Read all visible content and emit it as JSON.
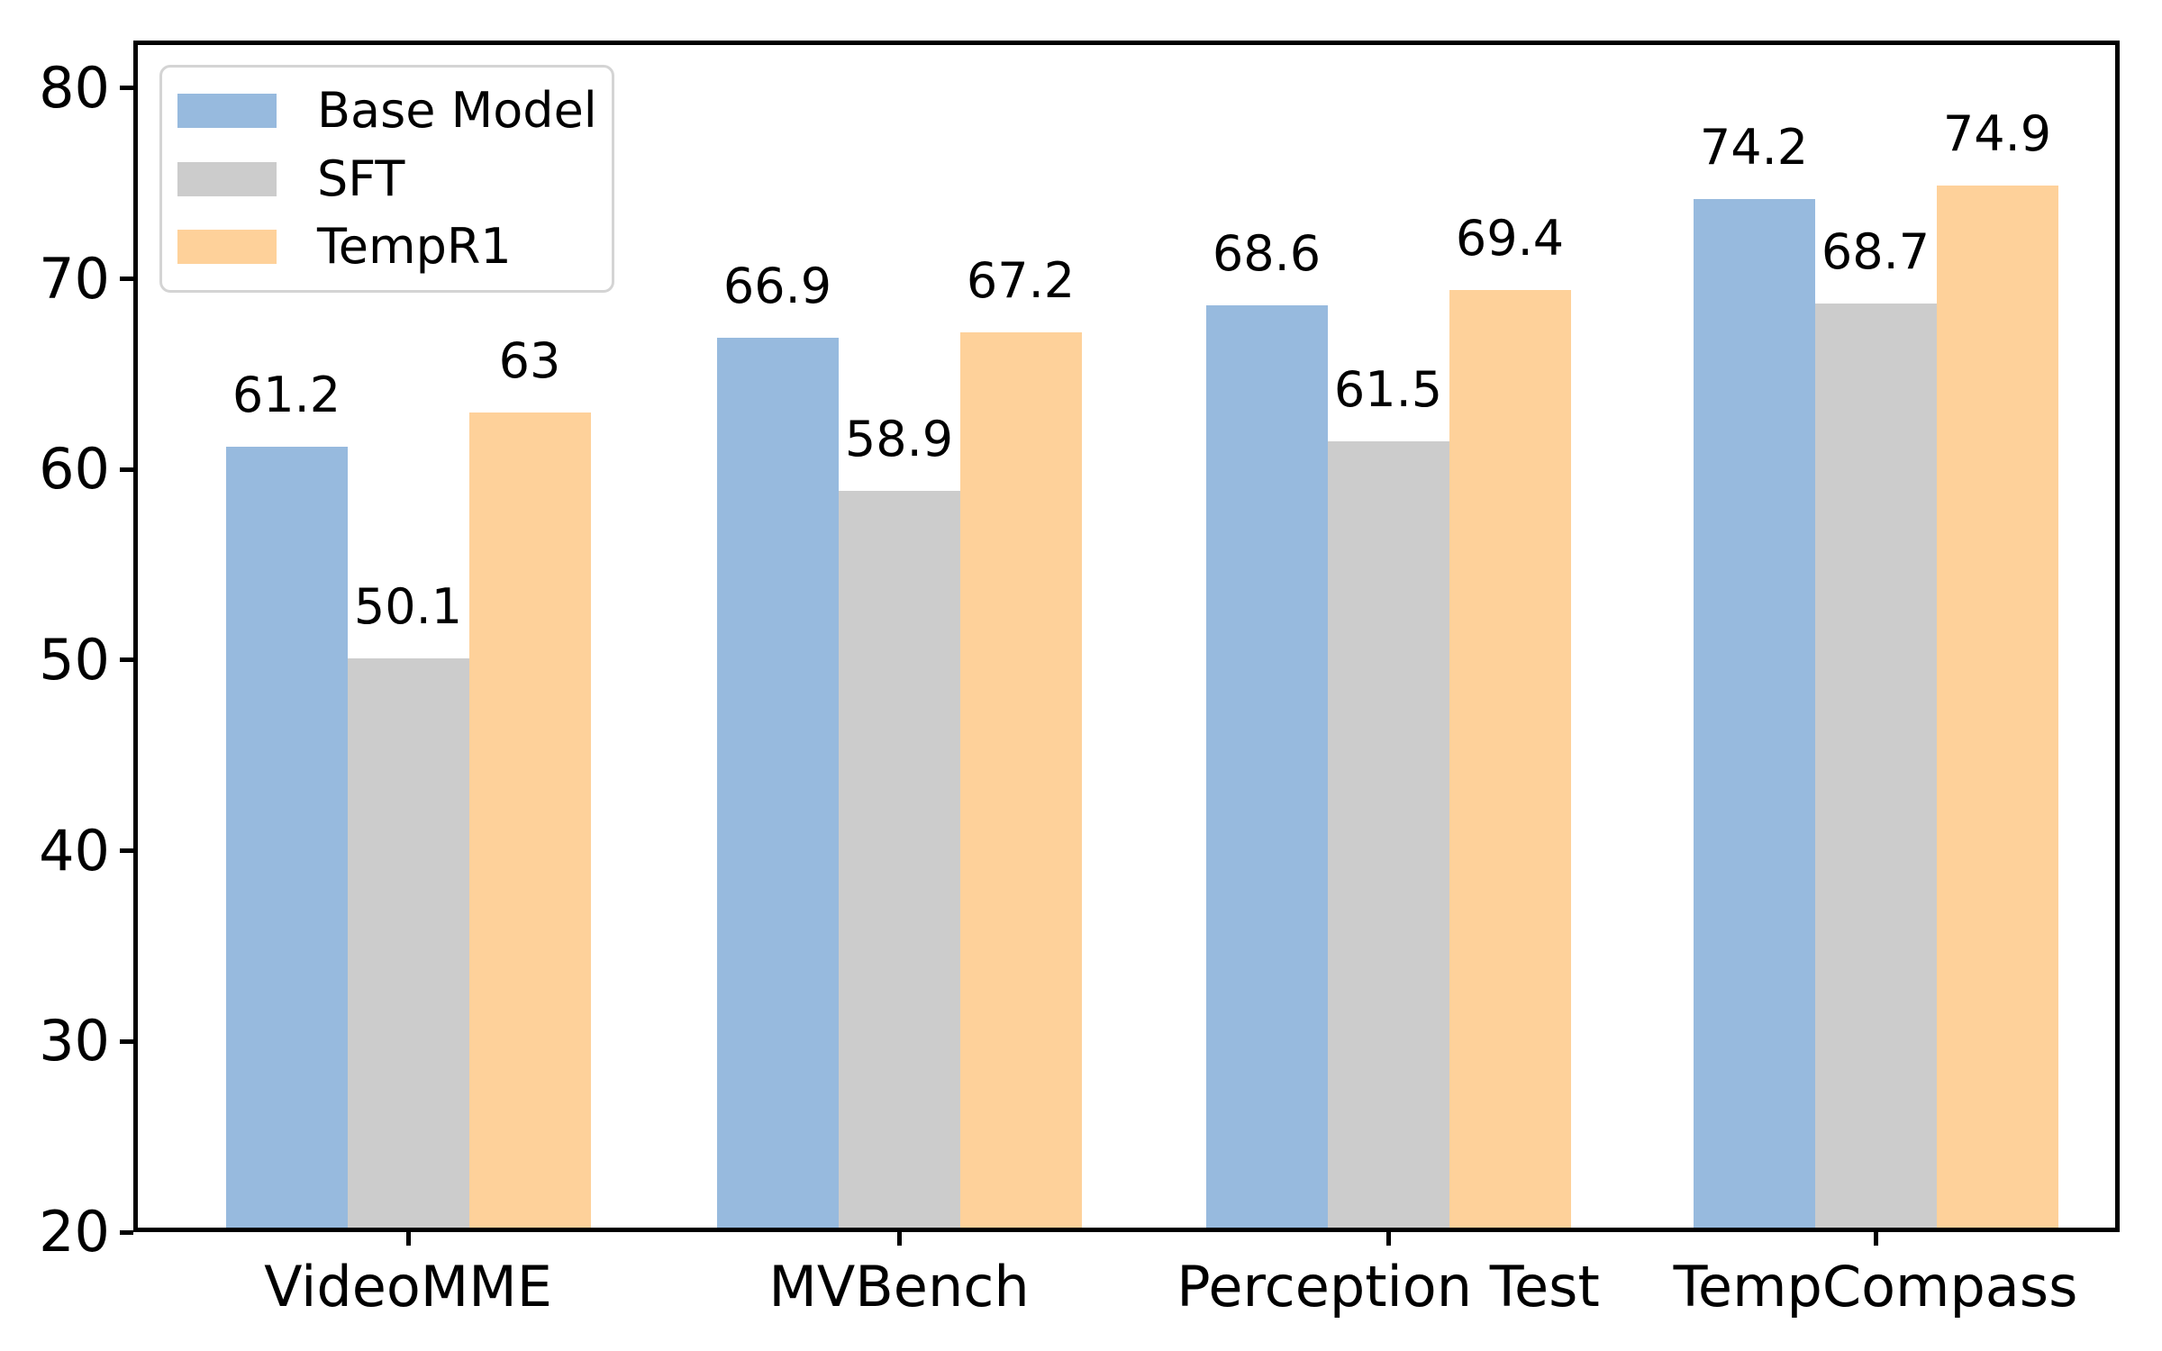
{
  "chart_data": {
    "type": "bar",
    "title": "",
    "xlabel": "",
    "ylabel": "",
    "categories": [
      "VideoMME",
      "MVBench",
      "Perception Test",
      "TempCompass"
    ],
    "series": [
      {
        "name": "Base Model",
        "color": "#97bade",
        "values": [
          61.2,
          66.9,
          68.6,
          74.2
        ],
        "value_labels": [
          "61.2",
          "66.9",
          "68.6",
          "74.2"
        ]
      },
      {
        "name": "SFT",
        "color": "#cccccc",
        "values": [
          50.1,
          58.9,
          61.5,
          68.7
        ],
        "value_labels": [
          "50.1",
          "58.9",
          "61.5",
          "68.7"
        ]
      },
      {
        "name": "TempR1",
        "color": "#fed19a",
        "values": [
          63.0,
          67.2,
          69.4,
          74.9
        ],
        "value_labels": [
          "63",
          "67.2",
          "69.4",
          "74.9"
        ]
      }
    ],
    "ylim": [
      20,
      82.5
    ],
    "yticks": [
      "20",
      "30",
      "40",
      "50",
      "60",
      "70",
      "80"
    ],
    "ytick_values": [
      20,
      30,
      40,
      50,
      60,
      70,
      80
    ],
    "grid": false,
    "legend_position": "upper left",
    "bar_value_labels_shown": true
  },
  "colors": {
    "background": "#ffffff",
    "axis": "#000000",
    "text": "#000000",
    "legend_border": "#d4d4d4"
  }
}
